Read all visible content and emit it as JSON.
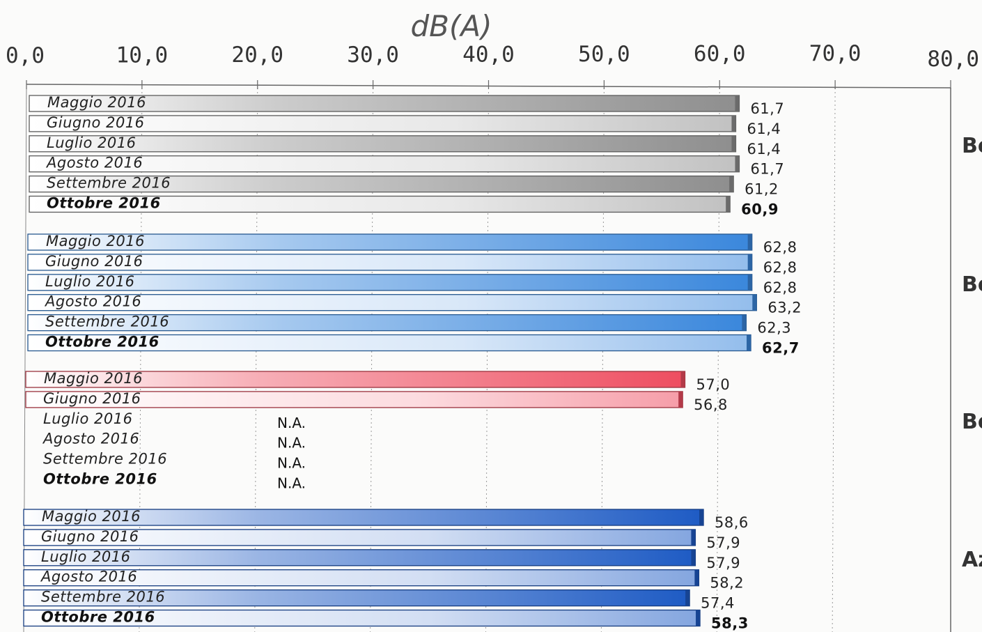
{
  "chart_data": {
    "type": "bar",
    "orientation": "horizontal",
    "unit_label": "dB(A)",
    "xlim": [
      0,
      80
    ],
    "x_ticks": [
      "0,0",
      "10,0",
      "20,0",
      "30,0",
      "40,0",
      "50,0",
      "60,0",
      "70,0",
      "80,0"
    ],
    "missing_label": "N.A.",
    "groups": [
      {
        "name": "Bo",
        "color": "#8e8e8e",
        "items": [
          {
            "label": "Maggio 2016",
            "value": 61.7,
            "value_label": "61,7",
            "bold": false
          },
          {
            "label": "Giugno 2016",
            "value": 61.4,
            "value_label": "61,4",
            "bold": false
          },
          {
            "label": "Luglio 2016",
            "value": 61.4,
            "value_label": "61,4",
            "bold": false
          },
          {
            "label": "Agosto 2016",
            "value": 61.7,
            "value_label": "61,7",
            "bold": false
          },
          {
            "label": "Settembre 2016",
            "value": 61.2,
            "value_label": "61,2",
            "bold": false
          },
          {
            "label": "Ottobre 2016",
            "value": 60.9,
            "value_label": "60,9",
            "bold": true
          }
        ]
      },
      {
        "name": "Bo",
        "color": "#3a87dc",
        "items": [
          {
            "label": "Maggio 2016",
            "value": 62.8,
            "value_label": "62,8",
            "bold": false
          },
          {
            "label": "Giugno 2016",
            "value": 62.8,
            "value_label": "62,8",
            "bold": false
          },
          {
            "label": "Luglio 2016",
            "value": 62.8,
            "value_label": "62,8",
            "bold": false
          },
          {
            "label": "Agosto 2016",
            "value": 63.2,
            "value_label": "63,2",
            "bold": false
          },
          {
            "label": "Settembre 2016",
            "value": 62.3,
            "value_label": "62,3",
            "bold": false
          },
          {
            "label": "Ottobre 2016",
            "value": 62.7,
            "value_label": "62,7",
            "bold": true
          }
        ]
      },
      {
        "name": "Bo",
        "color": "#ee4d60",
        "items": [
          {
            "label": "Maggio 2016",
            "value": 57.0,
            "value_label": "57,0",
            "bold": false
          },
          {
            "label": "Giugno 2016",
            "value": 56.8,
            "value_label": "56,8",
            "bold": false
          },
          {
            "label": "Luglio 2016",
            "value": null,
            "value_label": "",
            "bold": false
          },
          {
            "label": "Agosto 2016",
            "value": null,
            "value_label": "",
            "bold": false
          },
          {
            "label": "Settembre 2016",
            "value": null,
            "value_label": "",
            "bold": false
          },
          {
            "label": "Ottobre 2016",
            "value": null,
            "value_label": "",
            "bold": true
          }
        ]
      },
      {
        "name": "Az",
        "color": "#1e5bc4",
        "items": [
          {
            "label": "Maggio 2016",
            "value": 58.6,
            "value_label": "58,6",
            "bold": false
          },
          {
            "label": "Giugno 2016",
            "value": 57.9,
            "value_label": "57,9",
            "bold": false
          },
          {
            "label": "Luglio 2016",
            "value": 57.9,
            "value_label": "57,9",
            "bold": false
          },
          {
            "label": "Agosto 2016",
            "value": 58.2,
            "value_label": "58,2",
            "bold": false
          },
          {
            "label": "Settembre 2016",
            "value": 57.4,
            "value_label": "57,4",
            "bold": false
          },
          {
            "label": "Ottobre 2016",
            "value": 58.3,
            "value_label": "58,3",
            "bold": true
          }
        ]
      }
    ],
    "grid": true
  }
}
